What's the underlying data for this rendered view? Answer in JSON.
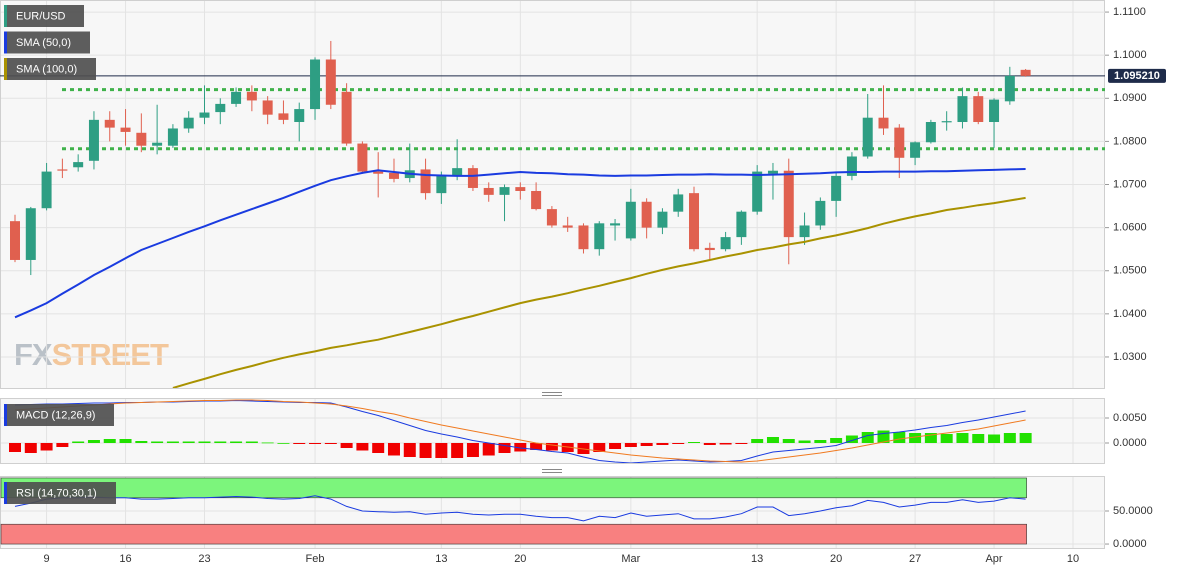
{
  "chart_data": [
    {
      "type": "candlestick",
      "categories": [
        null,
        null,
        "9",
        null,
        null,
        null,
        null,
        "16",
        null,
        null,
        null,
        null,
        "23",
        null,
        null,
        null,
        null,
        null,
        null,
        "Feb",
        null,
        null,
        null,
        null,
        null,
        null,
        null,
        "13",
        null,
        null,
        null,
        null,
        "20",
        null,
        null,
        null,
        null,
        null,
        null,
        "Mar",
        null,
        null,
        null,
        null,
        null,
        null,
        null,
        "13",
        null,
        null,
        null,
        null,
        "20",
        null,
        null,
        null,
        null,
        "27",
        null,
        null,
        null,
        null,
        "Apr",
        null,
        null,
        null,
        null,
        "10"
      ],
      "series": [
        {
          "name": "EUR/USD",
          "type": "candlestick",
          "color": "#2e9e83",
          "down_color": "#e0604f",
          "open": [
            1.0615,
            1.0525,
            1.0645,
            1.0735,
            1.074,
            1.0755,
            1.085,
            1.0832,
            1.082,
            1.079,
            1.079,
            1.083,
            1.0855,
            1.0868,
            1.0887,
            1.0915,
            1.0895,
            1.0865,
            1.0845,
            1.0875,
            1.099,
            1.0915,
            1.0795,
            1.073,
            1.0727,
            1.0715,
            1.0735,
            1.068,
            1.0722,
            1.0738,
            1.0692,
            1.0676,
            1.0694,
            1.0685,
            1.0643,
            1.0605,
            1.0605,
            1.055,
            1.0605,
            1.0575,
            1.066,
            1.06,
            1.0637,
            1.068,
            1.0553,
            1.055,
            1.0578,
            1.0637,
            1.0725,
            1.0732,
            1.0578,
            1.0605,
            1.0662,
            1.072,
            1.0765,
            1.0855,
            1.0832,
            1.0762,
            1.0798,
            1.0845,
            1.0845,
            1.0905,
            1.0845,
            1.0893,
            1.0966,
            null,
            null,
            null
          ],
          "high": [
            1.063,
            1.0648,
            1.075,
            1.076,
            1.077,
            1.087,
            1.087,
            1.0875,
            1.0865,
            1.0885,
            1.084,
            1.087,
            1.093,
            1.09,
            1.0925,
            1.093,
            1.0905,
            1.0895,
            1.089,
            1.0995,
            1.1033,
            1.0935,
            1.08,
            1.0775,
            1.076,
            1.0795,
            1.076,
            1.073,
            1.0805,
            1.0745,
            1.0705,
            1.07,
            1.0705,
            1.0705,
            1.065,
            1.0625,
            1.061,
            1.0615,
            1.062,
            1.069,
            1.0668,
            1.0645,
            1.069,
            1.0695,
            1.0565,
            1.059,
            1.064,
            1.0745,
            1.075,
            1.076,
            1.0635,
            1.067,
            1.073,
            1.0775,
            1.091,
            1.093,
            1.084,
            1.08,
            1.085,
            1.087,
            1.0925,
            1.0915,
            1.09,
            1.0973,
            1.0968,
            null,
            null,
            null
          ],
          "low": [
            1.052,
            1.049,
            1.064,
            1.0715,
            1.073,
            1.0735,
            1.08,
            1.079,
            1.0775,
            1.077,
            1.0785,
            1.082,
            1.084,
            1.084,
            1.088,
            1.087,
            1.084,
            1.084,
            1.08,
            1.085,
            1.0875,
            1.079,
            1.0725,
            1.067,
            1.0705,
            1.0705,
            1.0665,
            1.0655,
            1.071,
            1.0685,
            1.066,
            1.0615,
            1.0665,
            1.064,
            1.06,
            1.059,
            1.054,
            1.0535,
            1.057,
            1.057,
            1.0575,
            1.0585,
            1.0625,
            1.0545,
            1.0525,
            1.0545,
            1.056,
            1.063,
            1.0665,
            1.0515,
            1.056,
            1.0595,
            1.0625,
            1.071,
            1.076,
            1.0815,
            1.0715,
            1.0745,
            1.0795,
            1.0825,
            1.083,
            1.084,
            1.0785,
            1.0885,
            1.095,
            null,
            null,
            null
          ],
          "close": [
            1.0525,
            1.0645,
            1.073,
            1.0733,
            1.0752,
            1.085,
            1.0832,
            1.0822,
            1.079,
            1.0797,
            1.083,
            1.0855,
            1.0867,
            1.0887,
            1.0915,
            1.0895,
            1.0862,
            1.085,
            1.0875,
            1.099,
            1.0885,
            1.0795,
            1.073,
            1.0725,
            1.0713,
            1.0733,
            1.068,
            1.0722,
            1.0738,
            1.0692,
            1.0676,
            1.0694,
            1.0685,
            1.0643,
            1.0605,
            1.06,
            1.055,
            1.061,
            1.061,
            1.066,
            1.06,
            1.0637,
            1.0677,
            1.055,
            1.0548,
            1.0578,
            1.0637,
            1.073,
            1.0732,
            1.0578,
            1.0605,
            1.0662,
            1.072,
            1.0765,
            1.0855,
            1.083,
            1.0762,
            1.0798,
            1.0845,
            1.0847,
            1.0905,
            1.0845,
            1.0897,
            1.0952,
            1.0952,
            null,
            null,
            null
          ]
        },
        {
          "name": "SMA (50,0)",
          "type": "line",
          "color": "#1a3be0",
          "values": [
            1.0392,
            1.0408,
            1.0425,
            1.0447,
            1.0468,
            1.049,
            1.0509,
            1.0529,
            1.0548,
            1.0562,
            1.0576,
            1.059,
            1.0603,
            1.0617,
            1.063,
            1.0643,
            1.0656,
            1.0669,
            1.0683,
            1.0697,
            1.071,
            1.0719,
            1.0727,
            1.0733,
            1.0729,
            1.0725,
            1.0722,
            1.0721,
            1.072,
            1.072,
            1.0723,
            1.0726,
            1.0729,
            1.0727,
            1.0726,
            1.0724,
            1.0723,
            1.0721,
            1.072,
            1.0721,
            1.0721,
            1.0722,
            1.0723,
            1.0723,
            1.0724,
            1.0723,
            1.0723,
            1.0722,
            1.0723,
            1.0724,
            1.0725,
            1.0726,
            1.0728,
            1.0729,
            1.0729,
            1.073,
            1.073,
            1.073,
            1.0731,
            1.0731,
            1.0732,
            1.0733,
            1.0734,
            1.0735,
            1.0736,
            null,
            null,
            null
          ]
        },
        {
          "name": "SMA (100,0)",
          "type": "line",
          "color": "#a99200",
          "values": [
            null,
            null,
            null,
            null,
            null,
            null,
            null,
            null,
            null,
            null,
            1.0228,
            1.0239,
            1.0249,
            1.026,
            1.027,
            1.0279,
            1.0289,
            1.0298,
            1.0306,
            1.0313,
            1.0321,
            1.0327,
            1.0334,
            1.034,
            1.0349,
            1.0358,
            1.0367,
            1.0376,
            1.0386,
            1.0395,
            1.0405,
            1.0415,
            1.0425,
            1.0433,
            1.044,
            1.0448,
            1.0457,
            1.0465,
            1.0474,
            1.0483,
            1.0493,
            1.0502,
            1.051,
            1.0517,
            1.0525,
            1.0533,
            1.054,
            1.0548,
            1.0554,
            1.0561,
            1.0567,
            1.0575,
            1.0582,
            1.059,
            1.0599,
            1.0609,
            1.0618,
            1.0626,
            1.0633,
            1.0641,
            1.0646,
            1.0652,
            1.0657,
            1.0663,
            1.0669,
            null,
            null,
            null
          ]
        }
      ],
      "ylim": [
        1.0228,
        1.1128
      ],
      "yticks": [
        {
          "value": 1.03,
          "label": "1.0300"
        },
        {
          "value": 1.04,
          "label": "1.0400"
        },
        {
          "value": 1.05,
          "label": "1.0500"
        },
        {
          "value": 1.06,
          "label": "1.0600"
        },
        {
          "value": 1.07,
          "label": "1.0700"
        },
        {
          "value": 1.08,
          "label": "1.0800"
        },
        {
          "value": 1.09,
          "label": "1.0900"
        },
        {
          "value": 1.1,
          "label": "1.1000"
        },
        {
          "value": 1.11,
          "label": "1.1100"
        }
      ],
      "hlines": [
        1.092,
        1.0783
      ],
      "hline_color": "#3fb24a",
      "last_price": {
        "value": 1.09521,
        "label": "1.095210"
      },
      "last_price_color": "#1e2b4a",
      "watermark": [
        "FX",
        "STREET"
      ],
      "grid": true
    },
    {
      "type": "macd",
      "title": "MACD (12,26,9)",
      "series": [
        {
          "type": "bar",
          "color": "#22e000",
          "down_color": "#f00000",
          "values": [
            -0.0018,
            -0.002,
            -0.0015,
            -0.0008,
            0.0003,
            0.0006,
            0.0008,
            0.0008,
            0.0004,
            0.0003,
            0.0003,
            0.0003,
            0.0003,
            0.0003,
            0.0003,
            0.0003,
            0.0001,
            0.0,
            -0.0002,
            -0.0002,
            -0.0002,
            -0.001,
            -0.0015,
            -0.002,
            -0.0025,
            -0.0028,
            -0.003,
            -0.003,
            -0.003,
            -0.0028,
            -0.0025,
            -0.002,
            -0.0017,
            -0.0014,
            -0.0015,
            -0.0018,
            -0.0022,
            -0.0018,
            -0.0012,
            -0.0008,
            -0.0006,
            -0.0004,
            -0.0002,
            0.0002,
            -0.0004,
            -0.0003,
            -0.0002,
            0.0008,
            0.0012,
            0.0008,
            0.0005,
            0.0006,
            0.001,
            0.0015,
            0.0022,
            0.0025,
            0.0022,
            0.002,
            0.002,
            0.0018,
            0.002,
            0.0018,
            0.0017,
            0.002,
            0.002,
            null,
            null,
            null
          ]
        },
        {
          "type": "line",
          "color": "#1a3be0",
          "values": [
            0.0076,
            0.0077,
            0.0078,
            0.0078,
            0.0079,
            0.008,
            0.008,
            0.0081,
            0.0081,
            0.0082,
            0.0082,
            0.0083,
            0.0084,
            0.0084,
            0.0085,
            0.0084,
            0.0083,
            0.0082,
            0.0081,
            0.0081,
            0.008,
            0.0072,
            0.0063,
            0.0055,
            0.0045,
            0.0035,
            0.0025,
            0.0018,
            0.0012,
            0.0005,
            0.0,
            -0.0005,
            -0.001,
            -0.0013,
            -0.0017,
            -0.002,
            -0.0028,
            -0.0035,
            -0.0038,
            -0.004,
            -0.0038,
            -0.0036,
            -0.0034,
            -0.0036,
            -0.0038,
            -0.0037,
            -0.0035,
            -0.0026,
            -0.0018,
            -0.0015,
            -0.0012,
            -0.0009,
            -0.0005,
            0.0005,
            0.0015,
            0.0019,
            0.0022,
            0.0026,
            0.0031,
            0.0035,
            0.0041,
            0.0046,
            0.0052,
            0.0058,
            0.0064,
            null,
            null,
            null
          ]
        },
        {
          "type": "line",
          "color": "#f07a20",
          "values": [
            0.0066,
            0.0068,
            0.007,
            0.0072,
            0.0074,
            0.0076,
            0.0078,
            0.008,
            0.0081,
            0.0082,
            0.0083,
            0.0084,
            0.0085,
            0.0085,
            0.0086,
            0.0086,
            0.0085,
            0.0083,
            0.0082,
            0.008,
            0.0078,
            0.0074,
            0.0069,
            0.0063,
            0.0058,
            0.005,
            0.0043,
            0.0036,
            0.003,
            0.0024,
            0.0018,
            0.0012,
            0.0006,
            0.0,
            -0.0004,
            -0.0008,
            -0.0012,
            -0.0016,
            -0.002,
            -0.0024,
            -0.0027,
            -0.003,
            -0.0032,
            -0.0034,
            -0.0036,
            -0.0037,
            -0.0038,
            -0.0036,
            -0.0032,
            -0.0028,
            -0.0024,
            -0.002,
            -0.0015,
            -0.001,
            -0.0004,
            0.0002,
            0.0008,
            0.0012,
            0.0016,
            0.002,
            0.0024,
            0.0028,
            0.0034,
            0.004,
            0.0046,
            null,
            null,
            null
          ]
        }
      ],
      "ylim": [
        -0.004,
        0.009
      ],
      "yticks": [
        {
          "value": 0,
          "label": "0.0000"
        },
        {
          "value": 0.005,
          "label": "0.0050"
        }
      ]
    },
    {
      "type": "rsi",
      "title": "RSI (14,70,30,1)",
      "series": [
        {
          "type": "line",
          "color": "#1a3be0",
          "values": [
            57,
            62,
            68,
            70,
            70,
            71,
            70,
            70,
            68,
            68,
            69,
            70,
            70,
            71,
            72,
            71,
            69,
            68,
            69,
            73,
            68,
            57,
            50,
            49,
            48,
            49,
            45,
            47,
            48,
            45,
            44,
            45,
            45,
            42,
            40,
            40,
            35,
            42,
            40,
            47,
            42,
            44,
            46,
            38,
            38,
            41,
            46,
            56,
            56,
            43,
            46,
            50,
            55,
            58,
            66,
            63,
            56,
            59,
            63,
            63,
            67,
            63,
            65,
            70,
            68,
            null,
            null,
            null
          ]
        }
      ],
      "bands": [
        {
          "range": [
            70,
            100
          ],
          "color": "#7cf57c"
        },
        {
          "range": [
            0,
            30
          ],
          "color": "#f88080"
        }
      ],
      "ylim": [
        -6,
        103
      ],
      "yticks": [
        {
          "value": 0,
          "label": "0.0000"
        },
        {
          "value": 50,
          "label": "50.0000"
        }
      ]
    }
  ]
}
